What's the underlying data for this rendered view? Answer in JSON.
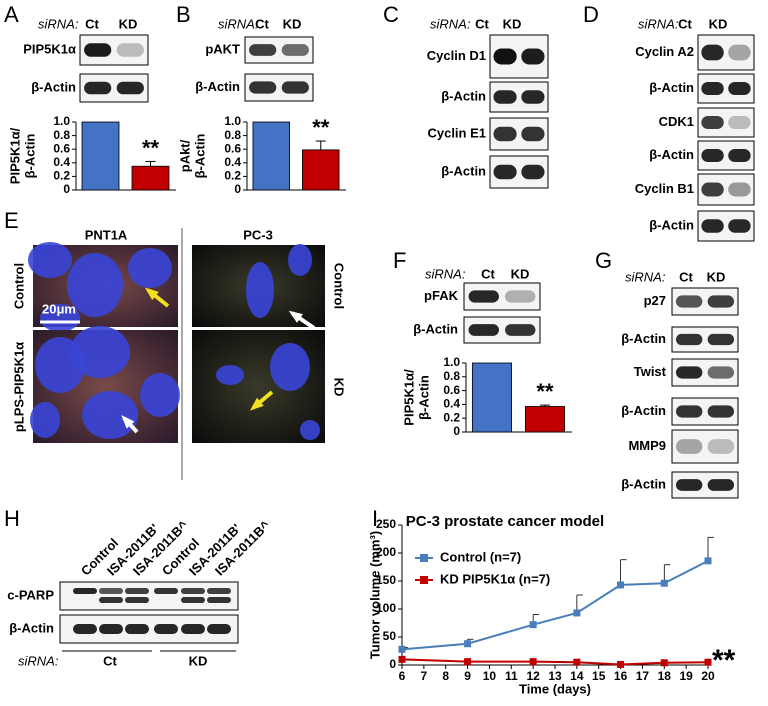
{
  "letters": [
    "A",
    "B",
    "C",
    "D",
    "E",
    "F",
    "G",
    "H",
    "I"
  ],
  "blots": [
    {
      "siRNA": "siRNA:",
      "lanes": [
        "Ct",
        "KD"
      ],
      "rows": [
        "PIP5K1α",
        "β-Actin"
      ]
    },
    {
      "siRNA": "siRNA:",
      "lanes": [
        "Ct",
        "KD"
      ],
      "rows": [
        "pAKT",
        "β-Actin"
      ]
    },
    {
      "siRNA": "siRNA:",
      "lanes": [
        "Ct",
        "KD"
      ],
      "rows": [
        "Cyclin D1",
        "β-Actin",
        "Cyclin E1",
        "β-Actin"
      ]
    },
    {
      "siRNA": "siRNA:",
      "lanes": [
        "Ct",
        "KD"
      ],
      "rows": [
        "Cyclin A2",
        "β-Actin",
        "CDK1",
        "β-Actin",
        "Cyclin B1",
        "β-Actin"
      ]
    },
    {
      "siRNA": "siRNA:",
      "lanes": [
        "Ct",
        "KD"
      ],
      "rows": [
        "pFAK",
        "β-Actin"
      ]
    },
    {
      "siRNA": "siRNA:",
      "lanes": [
        "Ct",
        "KD"
      ],
      "rows": [
        "p27",
        "β-Actin",
        "Twist",
        "β-Actin",
        "MMP9",
        "β-Actin"
      ]
    }
  ],
  "micrographs": {
    "columns": [
      "PNT1A",
      "PC-3"
    ],
    "left_rows": [
      "Control",
      "pLPS-PIP5K1α"
    ],
    "right_rows": [
      "Control",
      "KD"
    ],
    "scale_bar": "20μm"
  },
  "blot_h": {
    "lanes": [
      "Control",
      "ISA-2011B'",
      "ISA-2011B^",
      "Control",
      "ISA-2011B'",
      "ISA-2011B^"
    ],
    "rows": [
      "c-PARP",
      "β-Actin"
    ],
    "siRNA": "siRNA:",
    "groups": [
      "Ct",
      "KD"
    ]
  },
  "chart_data": [
    {
      "type": "bar",
      "ylabel": [
        "PIP5K1α/",
        "β-Actin"
      ],
      "categories": [
        null,
        null
      ],
      "values": [
        1.0,
        0.35
      ],
      "errors": [
        null,
        0.07
      ],
      "colors": [
        "#4472c4",
        "#c00000"
      ],
      "ylim": [
        0,
        1
      ],
      "yticks": [
        0,
        0.2,
        0.4,
        0.6,
        0.8,
        {
          "value": 1,
          "label": "1.0"
        }
      ],
      "annotation": "**"
    },
    {
      "type": "bar",
      "ylabel": [
        "pAkt/",
        "β-Actin"
      ],
      "categories": [
        null,
        null
      ],
      "values": [
        1.0,
        0.59
      ],
      "errors": [
        null,
        0.13
      ],
      "colors": [
        "#4472c4",
        "#c00000"
      ],
      "ylim": [
        0,
        1
      ],
      "yticks": [
        0,
        0.2,
        0.4,
        0.6,
        0.8,
        {
          "value": 1,
          "label": "1.0"
        }
      ],
      "annotation": "**"
    },
    {
      "type": "bar",
      "ylabel": [
        "PIP5K1α/",
        "β-Actin"
      ],
      "categories": [
        null,
        null
      ],
      "values": [
        1.0,
        0.37
      ],
      "errors": [
        null,
        0.02
      ],
      "colors": [
        "#4472c4",
        "#c00000"
      ],
      "ylim": [
        0,
        1
      ],
      "yticks": [
        0,
        0.2,
        0.4,
        0.6,
        0.8,
        {
          "value": 1,
          "label": "1.0"
        }
      ],
      "annotation": "**"
    },
    {
      "type": "line",
      "title": "PC-3 prostate cancer model",
      "xlabel": "Time (days)",
      "ylabel": "Tumor volume (mm³)",
      "x": [
        6,
        9,
        12,
        14,
        16,
        18,
        20
      ],
      "series": [
        {
          "name": "Control (n=7)",
          "color": "#4a7ebb",
          "values": [
            28,
            38,
            72,
            93,
            143,
            146,
            186
          ],
          "errors": [
            3,
            8,
            18,
            32,
            45,
            33,
            42
          ]
        },
        {
          "name": "KD PIP5K1α (n=7)",
          "color": "#c00000",
          "values": [
            10,
            6,
            6,
            5,
            1,
            4,
            5
          ]
        }
      ],
      "xlim": [
        6,
        20
      ],
      "xticks": [
        6,
        7,
        8,
        9,
        10,
        11,
        12,
        13,
        14,
        15,
        16,
        17,
        18,
        19,
        20
      ],
      "ylim": [
        0,
        250
      ],
      "yticks": [
        0,
        50,
        100,
        150,
        200,
        250
      ],
      "annotation": "**"
    }
  ]
}
